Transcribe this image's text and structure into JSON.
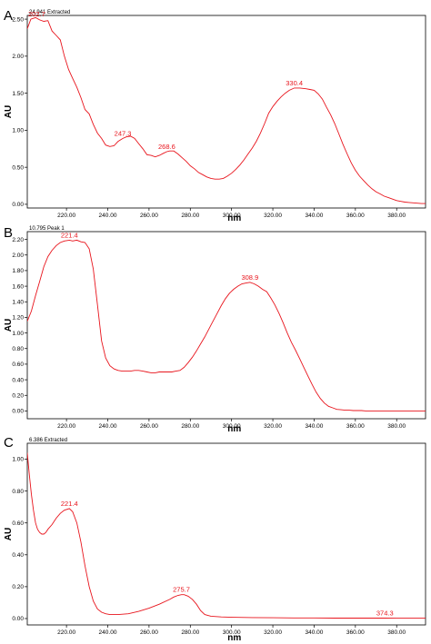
{
  "chart_data": [
    {
      "type": "line",
      "panel_letter": "A",
      "info": "24.941 Extracted",
      "xlabel": "nm",
      "ylabel": "AU",
      "xlim": [
        201,
        394
      ],
      "ylim": [
        -0.05,
        2.55
      ],
      "x_ticks": [
        "220.00",
        "240.00",
        "260.00",
        "280.00",
        "300.00",
        "320.00",
        "340.00",
        "360.00",
        "380.00"
      ],
      "y_ticks": [
        "0.00",
        "0.50",
        "1.00",
        "1.50",
        "2.00",
        "2.50"
      ],
      "y_tick_values": [
        0,
        0.5,
        1.0,
        1.5,
        2.0,
        2.5
      ],
      "color": "#e8141c",
      "series": [
        {
          "x": [
            201,
            202.7,
            205,
            207,
            209,
            211,
            213,
            215,
            217,
            219,
            221,
            223,
            225,
            227,
            229,
            231,
            233,
            235,
            237,
            239,
            241,
            243,
            245,
            247.3,
            249,
            251,
            253,
            255,
            257,
            259,
            261,
            263,
            265,
            267,
            268.6,
            270,
            272,
            274,
            276,
            278,
            280,
            282,
            284,
            286,
            288,
            290,
            292,
            294,
            296,
            298,
            300,
            302,
            304,
            306,
            308,
            310,
            312,
            314,
            316,
            318,
            320,
            322,
            324,
            326,
            328,
            330.4,
            333,
            336,
            338,
            340,
            342,
            344,
            346,
            348,
            350,
            352,
            354,
            356,
            358,
            360,
            362,
            364,
            366,
            368,
            370,
            372,
            374,
            376,
            378,
            380,
            382,
            384,
            386,
            388,
            390,
            392,
            394
          ],
          "y": [
            2.37,
            2.5,
            2.52,
            2.49,
            2.47,
            2.48,
            2.34,
            2.28,
            2.22,
            2.0,
            1.82,
            1.7,
            1.58,
            1.44,
            1.28,
            1.22,
            1.08,
            0.96,
            0.89,
            0.8,
            0.78,
            0.79,
            0.85,
            0.89,
            0.91,
            0.92,
            0.89,
            0.82,
            0.75,
            0.67,
            0.66,
            0.64,
            0.66,
            0.69,
            0.71,
            0.72,
            0.72,
            0.68,
            0.63,
            0.58,
            0.52,
            0.48,
            0.43,
            0.4,
            0.37,
            0.35,
            0.34,
            0.34,
            0.35,
            0.38,
            0.42,
            0.47,
            0.53,
            0.6,
            0.68,
            0.76,
            0.85,
            0.96,
            1.09,
            1.23,
            1.32,
            1.39,
            1.45,
            1.5,
            1.54,
            1.57,
            1.57,
            1.56,
            1.55,
            1.54,
            1.49,
            1.42,
            1.31,
            1.21,
            1.09,
            0.95,
            0.81,
            0.68,
            0.56,
            0.46,
            0.38,
            0.32,
            0.26,
            0.21,
            0.17,
            0.14,
            0.11,
            0.09,
            0.07,
            0.05,
            0.04,
            0.03,
            0.025,
            0.02,
            0.015,
            0.01,
            0.01
          ]
        }
      ],
      "peaks": [
        {
          "label": "202.7",
          "x": 202.7,
          "y": 2.5
        },
        {
          "label": "247.3",
          "x": 247.3,
          "y": 0.89
        },
        {
          "label": "268.6",
          "x": 268.6,
          "y": 0.71
        },
        {
          "label": "330.4",
          "x": 330.4,
          "y": 1.57
        }
      ]
    },
    {
      "type": "line",
      "panel_letter": "B",
      "info": "10.795 Peak 1",
      "xlabel": "nm",
      "ylabel": "AU",
      "xlim": [
        201,
        394
      ],
      "ylim": [
        -0.1,
        2.3
      ],
      "x_ticks": [
        "220.00",
        "240.00",
        "260.00",
        "280.00",
        "300.00",
        "320.00",
        "340.00",
        "360.00",
        "380.00"
      ],
      "y_ticks": [
        "0.00",
        "0.20",
        "0.40",
        "0.60",
        "0.80",
        "1.00",
        "1.20",
        "1.40",
        "1.60",
        "1.80",
        "2.00",
        "2.20"
      ],
      "y_tick_values": [
        0,
        0.2,
        0.4,
        0.6,
        0.8,
        1.0,
        1.2,
        1.4,
        1.6,
        1.8,
        2.0,
        2.2
      ],
      "color": "#e8141c",
      "series": [
        {
          "x": [
            201,
            203,
            205,
            207,
            209,
            211,
            213,
            215,
            217,
            219,
            221.4,
            223,
            225,
            227,
            229,
            231,
            233,
            235,
            237,
            239,
            241,
            243,
            245,
            247,
            249,
            251,
            253,
            255,
            257,
            259,
            261,
            263,
            265,
            267,
            269,
            271,
            273,
            275,
            277,
            279,
            281,
            283,
            285,
            287,
            289,
            291,
            293,
            295,
            297,
            299,
            301,
            303,
            305,
            307,
            308.9,
            311,
            313,
            315,
            317,
            319,
            321,
            323,
            325,
            327,
            329,
            331,
            333,
            335,
            337,
            339,
            341,
            343,
            345,
            347,
            349,
            351,
            353,
            355,
            357,
            359,
            361,
            363,
            365,
            367,
            369,
            371,
            373,
            375,
            377,
            379,
            381,
            383,
            385,
            387,
            389,
            391,
            394
          ],
          "y": [
            1.15,
            1.28,
            1.48,
            1.66,
            1.85,
            1.98,
            2.06,
            2.12,
            2.16,
            2.18,
            2.19,
            2.18,
            2.19,
            2.17,
            2.16,
            2.08,
            1.82,
            1.36,
            0.9,
            0.68,
            0.58,
            0.54,
            0.52,
            0.51,
            0.51,
            0.51,
            0.52,
            0.52,
            0.51,
            0.5,
            0.49,
            0.49,
            0.5,
            0.5,
            0.5,
            0.5,
            0.51,
            0.52,
            0.56,
            0.62,
            0.69,
            0.77,
            0.86,
            0.95,
            1.05,
            1.15,
            1.25,
            1.35,
            1.44,
            1.51,
            1.56,
            1.6,
            1.63,
            1.64,
            1.65,
            1.63,
            1.6,
            1.56,
            1.53,
            1.45,
            1.36,
            1.25,
            1.13,
            1.0,
            0.88,
            0.78,
            0.67,
            0.56,
            0.45,
            0.34,
            0.24,
            0.16,
            0.1,
            0.06,
            0.04,
            0.02,
            0.015,
            0.01,
            0.01,
            0.005,
            0.005,
            0.005,
            0.0,
            0.0,
            0.0,
            0.0,
            0.0,
            0.0,
            0.0,
            0.0,
            0.0,
            0.0,
            0.0,
            0.0,
            0.0,
            0.0,
            0.0
          ]
        }
      ],
      "peaks": [
        {
          "label": "221.4",
          "x": 221.4,
          "y": 2.19
        },
        {
          "label": "308.9",
          "x": 308.9,
          "y": 1.65
        }
      ]
    },
    {
      "type": "line",
      "panel_letter": "C",
      "info": "6.386 Extracted",
      "xlabel": "nm",
      "ylabel": "AU",
      "xlim": [
        201,
        394
      ],
      "ylim": [
        -0.04,
        1.1
      ],
      "x_ticks": [
        "220.00",
        "240.00",
        "260.00",
        "280.00",
        "300.00",
        "320.00",
        "340.00",
        "360.00",
        "380.00"
      ],
      "y_ticks": [
        "0.00",
        "0.20",
        "0.40",
        "0.60",
        "0.80",
        "1.00"
      ],
      "y_tick_values": [
        0,
        0.2,
        0.4,
        0.6,
        0.8,
        1.0
      ],
      "color": "#e8141c",
      "series": [
        {
          "x": [
            201,
            202,
            203,
            204,
            205,
            206,
            207,
            208,
            209,
            210,
            211,
            213,
            215,
            217,
            219,
            221.4,
            223,
            225,
            227,
            229,
            231,
            233,
            235,
            237,
            239,
            241,
            243,
            245,
            250,
            255,
            260,
            265,
            270,
            272,
            274,
            275.7,
            277,
            279,
            281,
            283,
            285,
            287,
            290,
            295,
            300,
            310,
            320,
            330,
            340,
            350,
            360,
            370,
            374.3,
            380,
            385,
            394
          ],
          "y": [
            1.04,
            0.9,
            0.78,
            0.68,
            0.6,
            0.56,
            0.54,
            0.53,
            0.53,
            0.54,
            0.56,
            0.59,
            0.63,
            0.66,
            0.68,
            0.69,
            0.67,
            0.6,
            0.48,
            0.33,
            0.2,
            0.11,
            0.06,
            0.04,
            0.03,
            0.025,
            0.025,
            0.025,
            0.03,
            0.045,
            0.065,
            0.09,
            0.12,
            0.135,
            0.145,
            0.15,
            0.15,
            0.14,
            0.12,
            0.09,
            0.05,
            0.025,
            0.015,
            0.01,
            0.008,
            0.006,
            0.005,
            0.004,
            0.004,
            0.003,
            0.003,
            0.003,
            0.003,
            0.002,
            0.002,
            0.002
          ]
        }
      ],
      "peaks": [
        {
          "label": "221.4",
          "x": 221.4,
          "y": 0.69
        },
        {
          "label": "275.7",
          "x": 275.7,
          "y": 0.15
        },
        {
          "label": "374.3",
          "x": 374.3,
          "y": 0.003
        }
      ]
    }
  ]
}
